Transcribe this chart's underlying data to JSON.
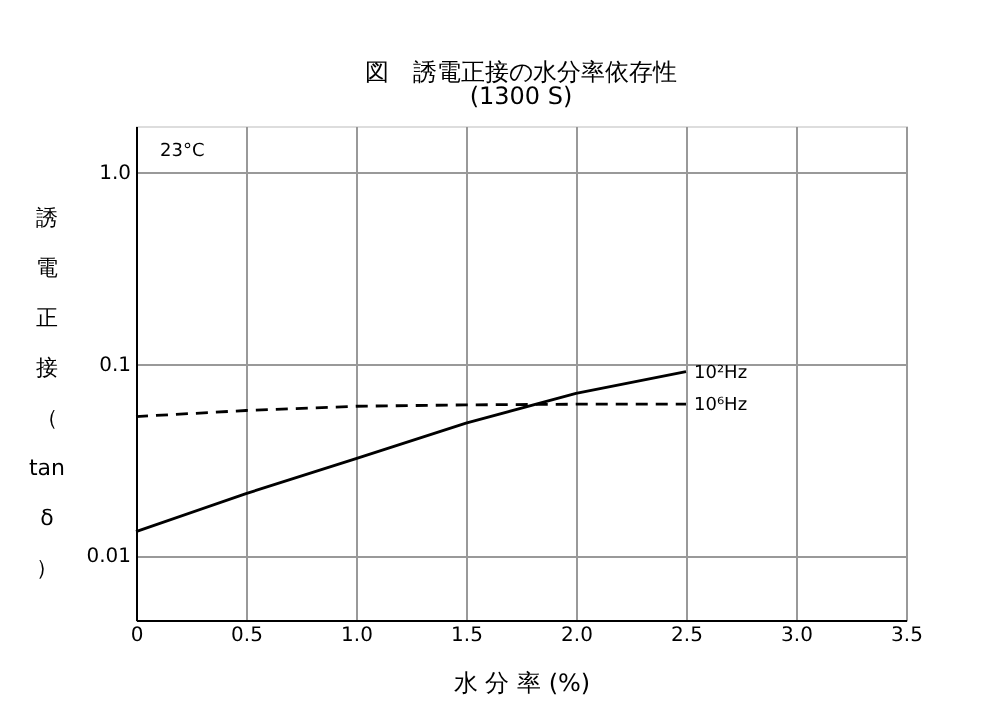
{
  "chart_data": {
    "type": "line",
    "title": "図　誘電正接の水分率依存性",
    "subtitle": "(1300 S)",
    "xlabel": "水 分 率 (%)",
    "ylabel": "誘電正接（tanδ）",
    "annotations": [
      "23°C"
    ],
    "x": [
      0,
      0.5,
      1.0,
      1.5,
      2.0,
      2.5
    ],
    "series": [
      {
        "name": "10²Hz",
        "color": "#000000",
        "line_style": "solid",
        "values": [
          0.0133,
          0.021,
          0.032,
          0.049,
          0.07,
          0.091
        ]
      },
      {
        "name": "10⁶Hz",
        "color": "#000000",
        "line_style": "dashed",
        "values": [
          0.053,
          0.057,
          0.06,
          0.061,
          0.0615,
          0.0615
        ]
      }
    ],
    "log": true,
    "xlim": [
      0,
      3.5
    ],
    "ylim": [
      0.0046,
      1.74
    ],
    "xticks": [
      0,
      0.5,
      {
        "value": 1,
        "label": "1.0"
      },
      1.5,
      {
        "value": 2,
        "label": "2.0"
      },
      2.5,
      {
        "value": 3,
        "label": "3.0"
      },
      3.5
    ],
    "yticks": [
      {
        "value": 0.01,
        "label": "0.01"
      },
      {
        "value": 0.1,
        "label": "0.1"
      },
      {
        "value": 1,
        "label": "1.0"
      }
    ],
    "grid": true,
    "legend": false,
    "marker": "none"
  }
}
